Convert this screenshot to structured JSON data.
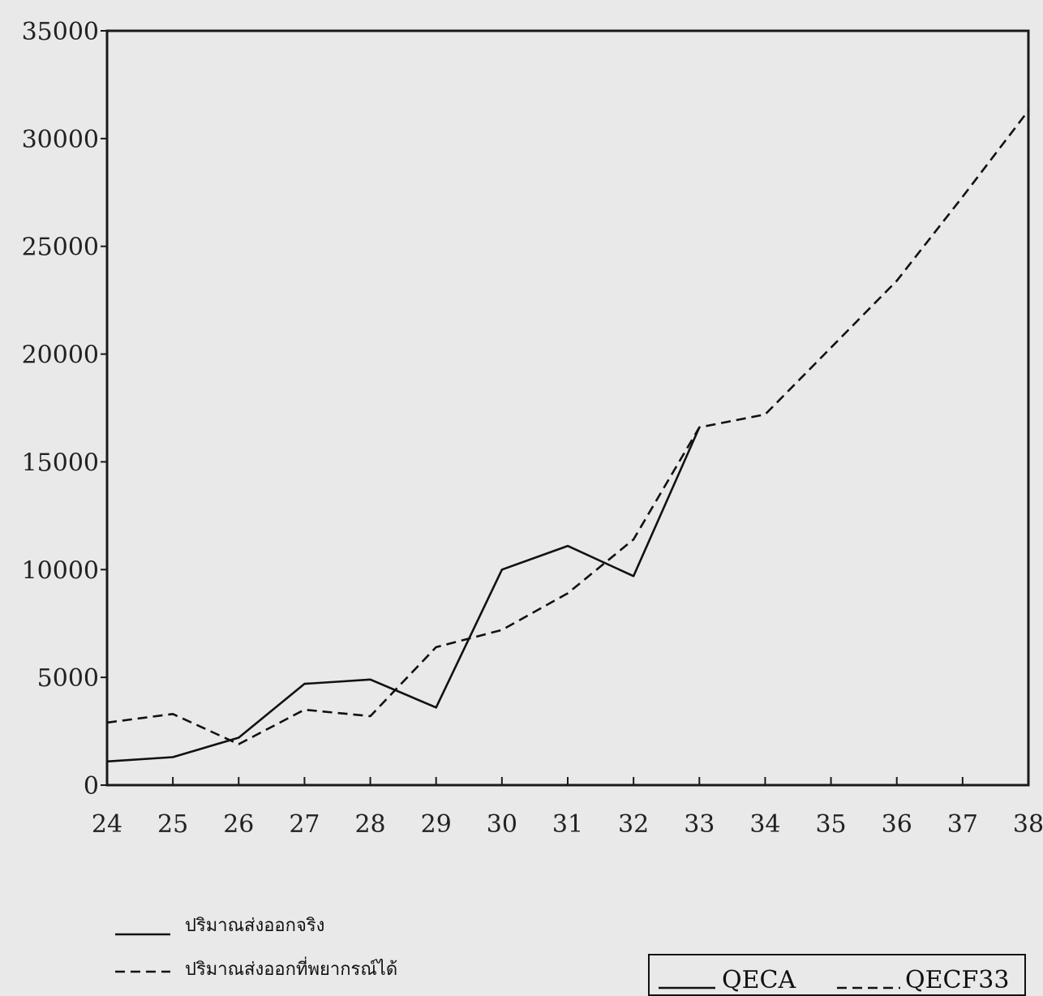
{
  "chart_data": {
    "type": "line",
    "title": "",
    "xlabel": "",
    "ylabel": "",
    "x": [
      24,
      25,
      26,
      27,
      28,
      29,
      30,
      31,
      32,
      33,
      34,
      35,
      36,
      37,
      38
    ],
    "x_ticks": [
      "24",
      "25",
      "26",
      "27",
      "28",
      "29",
      "30",
      "31",
      "32",
      "33",
      "34",
      "35",
      "36",
      "37",
      "38"
    ],
    "y_ticks": [
      "0",
      "5000",
      "10000",
      "15000",
      "20000",
      "25000",
      "30000",
      "35000"
    ],
    "xlim": [
      24,
      38
    ],
    "ylim": [
      0,
      35000
    ],
    "grid": false,
    "series": [
      {
        "name": "QECA",
        "style": "solid",
        "color": "#111111",
        "x": [
          24,
          25,
          26,
          27,
          27.5,
          28,
          29,
          30,
          31,
          32,
          33
        ],
        "values": [
          1100,
          1300,
          2200,
          4700,
          4800,
          4900,
          3600,
          10000,
          11100,
          9700,
          16600
        ]
      },
      {
        "name": "QECF33",
        "style": "dashed",
        "color": "#111111",
        "x": [
          24,
          25,
          26,
          27,
          28,
          29,
          30,
          31,
          32,
          33,
          34,
          35,
          36,
          37,
          38
        ],
        "values": [
          2900,
          3300,
          1900,
          3500,
          3200,
          6400,
          7200,
          8900,
          11400,
          16600,
          17200,
          20300,
          23400,
          27300,
          31300
        ]
      }
    ],
    "legend": {
      "placement": "bottom-right",
      "entries": [
        "QECA",
        "QECF33"
      ]
    },
    "annotations": {
      "solid_line_label": "ปริมาณส่งออกจริง",
      "dashed_line_label": "ปริมาณส่งออกที่พยากรณ์ได้"
    }
  }
}
